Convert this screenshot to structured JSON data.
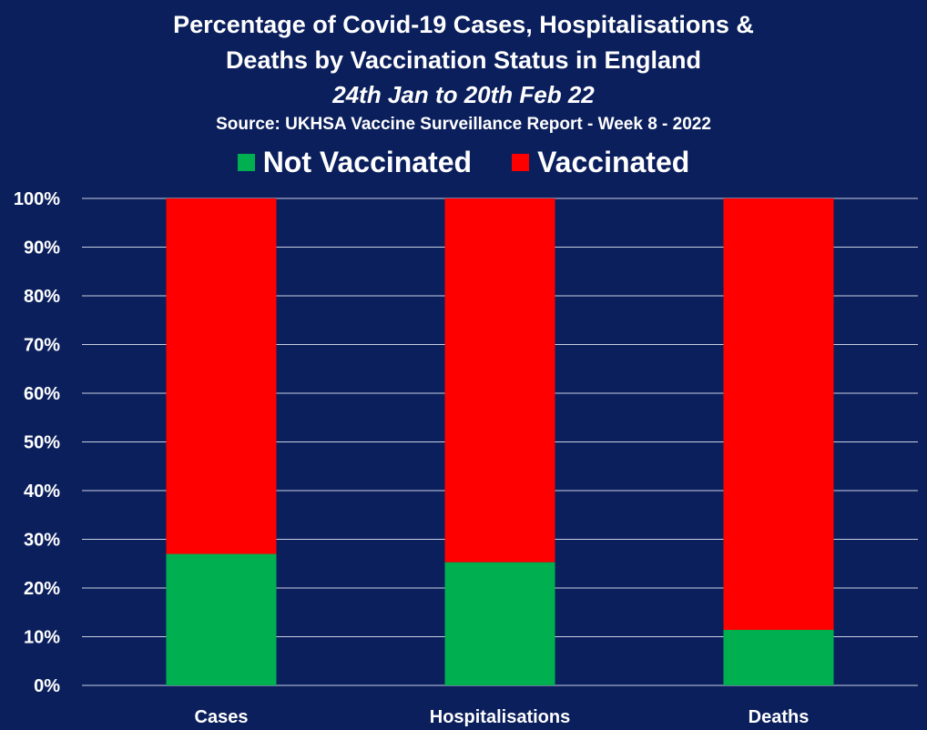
{
  "chart_data": {
    "type": "bar",
    "stacked": true,
    "title": "Percentage of Covid-19 Cases, Hospitalisations &",
    "title_line2": "Deaths by Vaccination Status in England",
    "subtitle": "24th Jan to 20th Feb 22",
    "source": "Source: UKHSA Vaccine Surveillance Report - Week 8 - 2022",
    "categories": [
      "Cases",
      "Hospitalisations",
      "Deaths"
    ],
    "series": [
      {
        "name": "Not Vaccinated",
        "color": "#00b050",
        "values": [
          27,
          25.3,
          11.4
        ]
      },
      {
        "name": "Vaccinated",
        "color": "#ff0000",
        "values": [
          73,
          74.7,
          88.6
        ]
      }
    ],
    "y_ticks": [
      "0%",
      "10%",
      "20%",
      "30%",
      "40%",
      "50%",
      "60%",
      "70%",
      "80%",
      "90%",
      "100%"
    ],
    "ylim": [
      0,
      100
    ],
    "grid": true,
    "legend_position": "top",
    "background_color": "#0b1f5c"
  }
}
